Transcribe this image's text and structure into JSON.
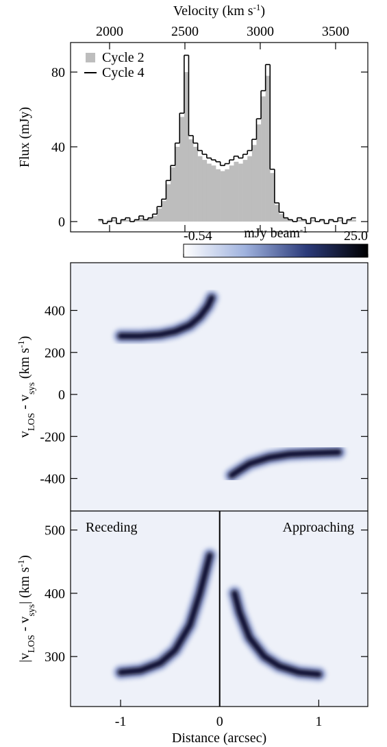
{
  "chart_data": [
    {
      "type": "step",
      "xlabel": [
        "Velocity (km s",
        "-1",
        ")"
      ],
      "xlabel_scripts": [
        "",
        "sup",
        ""
      ],
      "ylabel": "Flux (mJy)",
      "xlim": [
        1741,
        3714
      ],
      "xticks": [
        2000,
        2500,
        3000,
        3500
      ],
      "ylim": [
        -5.5,
        95.8
      ],
      "yticks": [
        0,
        40,
        80
      ],
      "legend": "top-left",
      "x": [
        1940,
        1970,
        2000,
        2030,
        2060,
        2090,
        2120,
        2150,
        2180,
        2210,
        2240,
        2270,
        2300,
        2330,
        2360,
        2390,
        2420,
        2450,
        2480,
        2510,
        2540,
        2570,
        2600,
        2630,
        2660,
        2690,
        2720,
        2750,
        2780,
        2810,
        2840,
        2870,
        2900,
        2930,
        2960,
        2990,
        3020,
        3050,
        3080,
        3110,
        3140,
        3170,
        3200,
        3230,
        3260,
        3290,
        3320,
        3350,
        3380,
        3410,
        3440,
        3470,
        3500,
        3530,
        3560,
        3590,
        3620
      ],
      "series": [
        {
          "name": "Cycle 2",
          "color": "#bdbdbd",
          "kind": "bar",
          "values": [
            1,
            0,
            1,
            1,
            0,
            1,
            1,
            0,
            1,
            2,
            1,
            2,
            3,
            7,
            11,
            20,
            29,
            40,
            56,
            80,
            44,
            40,
            35,
            33,
            31,
            30,
            28,
            27,
            28,
            30,
            32,
            31,
            33,
            35,
            41,
            52,
            67,
            78,
            26,
            9,
            4,
            2,
            1,
            0,
            1,
            1,
            0,
            1,
            0,
            1,
            0,
            1,
            0,
            1,
            0,
            1,
            1
          ]
        },
        {
          "name": "Cycle 4",
          "color": "#000000",
          "kind": "step",
          "values": [
            1,
            -1,
            0,
            2,
            -1,
            1,
            2,
            0,
            1,
            3,
            1,
            2,
            4,
            8,
            12,
            22,
            30,
            42,
            58,
            89,
            46,
            42,
            38,
            36,
            34,
            33,
            32,
            30,
            31,
            33,
            35,
            34,
            36,
            38,
            44,
            55,
            70,
            84,
            28,
            10,
            5,
            2,
            1,
            0,
            2,
            1,
            -1,
            2,
            0,
            1,
            -1,
            1,
            0,
            2,
            -1,
            1,
            2
          ]
        }
      ]
    },
    {
      "type": "pv",
      "ylabel": [
        "v",
        "LOS",
        " - v",
        "sys",
        " (km s",
        "-1",
        ")"
      ],
      "ylabel_scripts": [
        "",
        "sub",
        "",
        "sub",
        "",
        "sup",
        ""
      ],
      "xlim": [
        -1.505,
        1.495
      ],
      "ylim": [
        -555,
        627
      ],
      "yticks": [
        -400,
        -200,
        0,
        200,
        400
      ],
      "clim": [
        -0.54,
        25
      ],
      "cticks": [
        -0.54,
        {
          "value": 25,
          "label": "25.0"
        }
      ],
      "colorbar_label": [
        "mJy beam",
        "-1"
      ],
      "colorbar_label_scripts": [
        "",
        "sup"
      ],
      "colors": [
        "#ffffff",
        "#9fb2de",
        "#2c3b7a",
        "#000000"
      ],
      "series": [
        {
          "x": [
            -1.0,
            -0.8,
            -0.6,
            -0.45,
            -0.3,
            -0.2,
            -0.12,
            -0.08
          ],
          "values": [
            278,
            278,
            285,
            300,
            330,
            370,
            420,
            460
          ]
        },
        {
          "x": [
            0.12,
            0.2,
            0.3,
            0.5,
            0.7,
            0.9,
            1.2
          ],
          "values": [
            -385,
            -360,
            -330,
            -300,
            -285,
            -280,
            -275
          ]
        }
      ]
    },
    {
      "type": "pv",
      "ylabel": [
        "|v",
        "LOS",
        " - v",
        "sys",
        "| (km s",
        "-1",
        ")"
      ],
      "ylabel_scripts": [
        "",
        "sub",
        "",
        "sub",
        "",
        "sup",
        ""
      ],
      "xlabel": "Distance (arcsec)",
      "xlim": [
        -1.505,
        1.495
      ],
      "xticks": [
        -1,
        0,
        1
      ],
      "vline": 0,
      "ylim": [
        221,
        530
      ],
      "yticks": [
        300,
        400,
        500
      ],
      "annotations": [
        "Receding",
        "Approaching"
      ],
      "series": [
        {
          "x": [
            -1.0,
            -0.8,
            -0.6,
            -0.45,
            -0.3,
            -0.2,
            -0.1
          ],
          "values": [
            275,
            278,
            290,
            310,
            350,
            400,
            460
          ]
        },
        {
          "x": [
            0.15,
            0.2,
            0.3,
            0.45,
            0.6,
            0.8,
            1.0
          ],
          "values": [
            400,
            370,
            330,
            300,
            285,
            275,
            272
          ]
        }
      ]
    }
  ]
}
